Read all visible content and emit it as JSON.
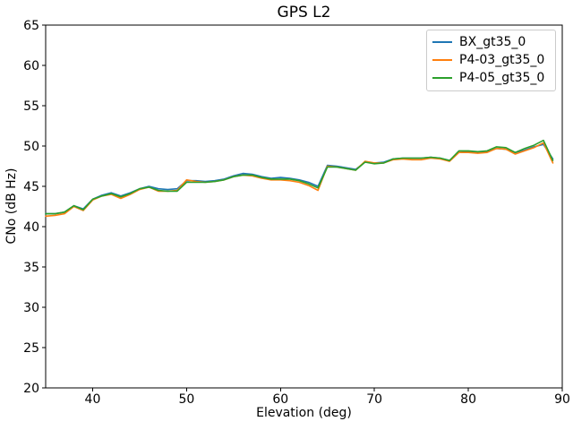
{
  "figure": {
    "background": "#ffffff"
  },
  "chart_data": {
    "type": "line",
    "title": "GPS L2",
    "xlabel": "Elevation (deg)",
    "ylabel": "CNo (dB Hz)",
    "xlim": [
      35,
      90
    ],
    "ylim": [
      20,
      65
    ],
    "xticks": [
      40,
      50,
      60,
      70,
      80,
      90
    ],
    "yticks": [
      20,
      25,
      30,
      35,
      40,
      45,
      50,
      55,
      60,
      65
    ],
    "grid": false,
    "legend_position": "upper right",
    "x": [
      35,
      36,
      37,
      38,
      39,
      40,
      41,
      42,
      43,
      44,
      45,
      46,
      47,
      48,
      49,
      50,
      51,
      52,
      53,
      54,
      55,
      56,
      57,
      58,
      59,
      60,
      61,
      62,
      63,
      64,
      65,
      66,
      67,
      68,
      69,
      70,
      71,
      72,
      73,
      74,
      75,
      76,
      77,
      78,
      79,
      80,
      81,
      82,
      83,
      84,
      85,
      86,
      87,
      88,
      89
    ],
    "series": [
      {
        "name": "BX_gt35_0",
        "color": "#1f77b4",
        "values": [
          41.6,
          41.6,
          41.8,
          42.6,
          42.2,
          43.4,
          43.9,
          44.2,
          43.8,
          44.2,
          44.7,
          45.0,
          44.7,
          44.6,
          44.7,
          45.7,
          45.7,
          45.6,
          45.7,
          45.9,
          46.3,
          46.6,
          46.5,
          46.2,
          46.0,
          46.1,
          46.0,
          45.8,
          45.5,
          45.0,
          47.6,
          47.5,
          47.3,
          47.1,
          48.0,
          47.9,
          48.0,
          48.4,
          48.5,
          48.5,
          48.5,
          48.6,
          48.5,
          48.2,
          49.2,
          49.3,
          49.2,
          49.3,
          49.7,
          49.6,
          49.2,
          49.5,
          49.9,
          50.2,
          48.4
        ]
      },
      {
        "name": "P4-03_gt35_0",
        "color": "#ff7f0e",
        "values": [
          41.3,
          41.4,
          41.6,
          42.5,
          42.0,
          43.3,
          43.8,
          44.0,
          43.5,
          44.0,
          44.6,
          44.9,
          44.4,
          44.4,
          44.5,
          45.8,
          45.6,
          45.5,
          45.6,
          45.8,
          46.2,
          46.4,
          46.3,
          46.0,
          45.8,
          45.8,
          45.7,
          45.5,
          45.1,
          44.5,
          47.5,
          47.4,
          47.2,
          47.0,
          48.1,
          47.9,
          47.9,
          48.3,
          48.4,
          48.3,
          48.3,
          48.5,
          48.4,
          48.1,
          49.2,
          49.2,
          49.1,
          49.2,
          49.7,
          49.6,
          49.0,
          49.4,
          49.8,
          50.4,
          47.9
        ]
      },
      {
        "name": "P4-05_gt35_0",
        "color": "#2ca02c",
        "values": [
          41.6,
          41.6,
          41.8,
          42.6,
          42.1,
          43.4,
          43.8,
          44.1,
          43.7,
          44.1,
          44.7,
          44.9,
          44.5,
          44.4,
          44.4,
          45.5,
          45.5,
          45.5,
          45.6,
          45.8,
          46.2,
          46.4,
          46.4,
          46.1,
          45.9,
          45.9,
          45.9,
          45.7,
          45.3,
          44.8,
          47.4,
          47.4,
          47.2,
          47.0,
          48.0,
          47.8,
          47.9,
          48.4,
          48.5,
          48.5,
          48.5,
          48.6,
          48.5,
          48.2,
          49.4,
          49.4,
          49.3,
          49.4,
          49.9,
          49.8,
          49.2,
          49.7,
          50.1,
          50.7,
          48.2
        ]
      }
    ]
  }
}
